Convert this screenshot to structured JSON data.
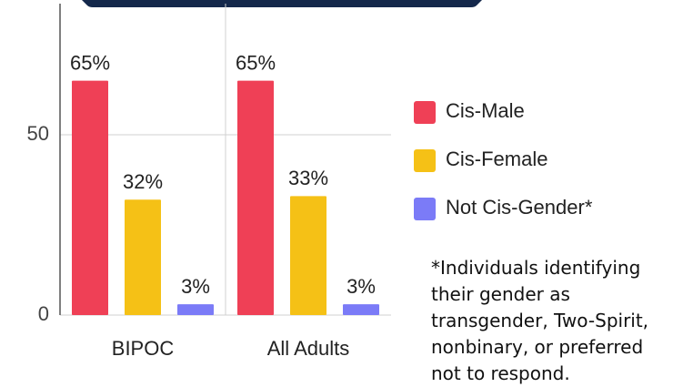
{
  "chart_data": {
    "type": "bar",
    "categories": [
      "BIPOC",
      "All Adults"
    ],
    "series": [
      {
        "name": "Cis-Male",
        "color": "#ef4056",
        "values": [
          65,
          65
        ],
        "value_labels": [
          "65%",
          "65%"
        ]
      },
      {
        "name": "Cis-Female",
        "color": "#f5c116",
        "values": [
          32,
          33
        ],
        "value_labels": [
          "32%",
          "33%"
        ]
      },
      {
        "name": "Not Cis-Gender*",
        "color": "#7b7bf7",
        "values": [
          3,
          3
        ],
        "value_labels": [
          "3%",
          "3%"
        ]
      }
    ],
    "ylim": [
      0,
      85
    ],
    "yticks": [
      0,
      50
    ],
    "grid": true,
    "legend": "right",
    "footnote": "*Individuals identifying their gender as transgender, Two-Spirit, nonbinary, or preferred not to respond."
  }
}
